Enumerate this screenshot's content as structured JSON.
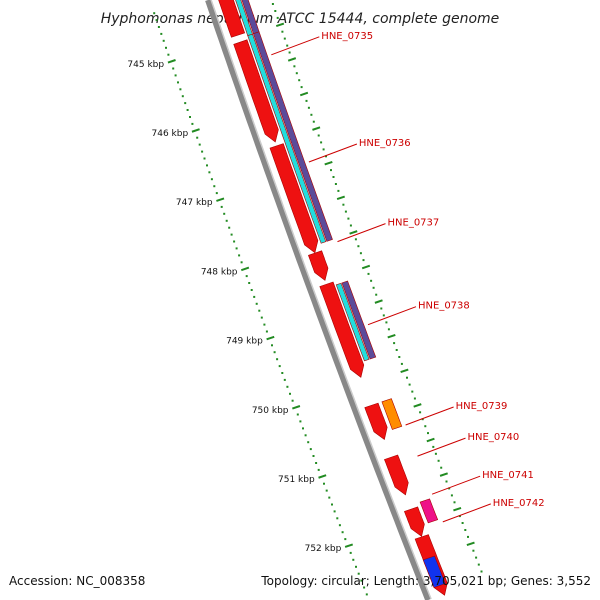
{
  "title": "Hyphomonas neptunium ATCC 15444, complete genome",
  "footer": {
    "accession": "Accession: NC_008358",
    "topology": "Topology: circular; Length: 3,705,021 bp; Genes: 3,552"
  },
  "kbp_labels": [
    {
      "text": "745 kbp",
      "kbp": 745
    },
    {
      "text": "746 kbp",
      "kbp": 746
    },
    {
      "text": "747 kbp",
      "kbp": 747
    },
    {
      "text": "748 kbp",
      "kbp": 748
    },
    {
      "text": "749 kbp",
      "kbp": 749
    },
    {
      "text": "750 kbp",
      "kbp": 750
    },
    {
      "text": "751 kbp",
      "kbp": 751
    },
    {
      "text": "752 kbp",
      "kbp": 752
    }
  ],
  "gene_labels": [
    {
      "text": "HNE_0735",
      "kbp": 745.35
    },
    {
      "text": "HNE_0736",
      "kbp": 746.9
    },
    {
      "text": "HNE_0737",
      "kbp": 748.05
    },
    {
      "text": "HNE_0738",
      "kbp": 749.25
    },
    {
      "text": "HNE_0739",
      "kbp": 750.7
    },
    {
      "text": "HNE_0740",
      "kbp": 751.15
    },
    {
      "text": "HNE_0741",
      "kbp": 751.7
    },
    {
      "text": "HNE_0742",
      "kbp": 752.1
    }
  ],
  "colors": {
    "cds": "#ee1111",
    "cds_edge": "#aa0000",
    "blue_track": "#5b4b9a",
    "cyan_track": "#22dddd",
    "orange": "#ff8c00",
    "magenta": "#ee1188",
    "blue_feature": "#1133ee",
    "backbone": "#888888",
    "tick": "#228b22",
    "label": "#cc0000"
  }
}
